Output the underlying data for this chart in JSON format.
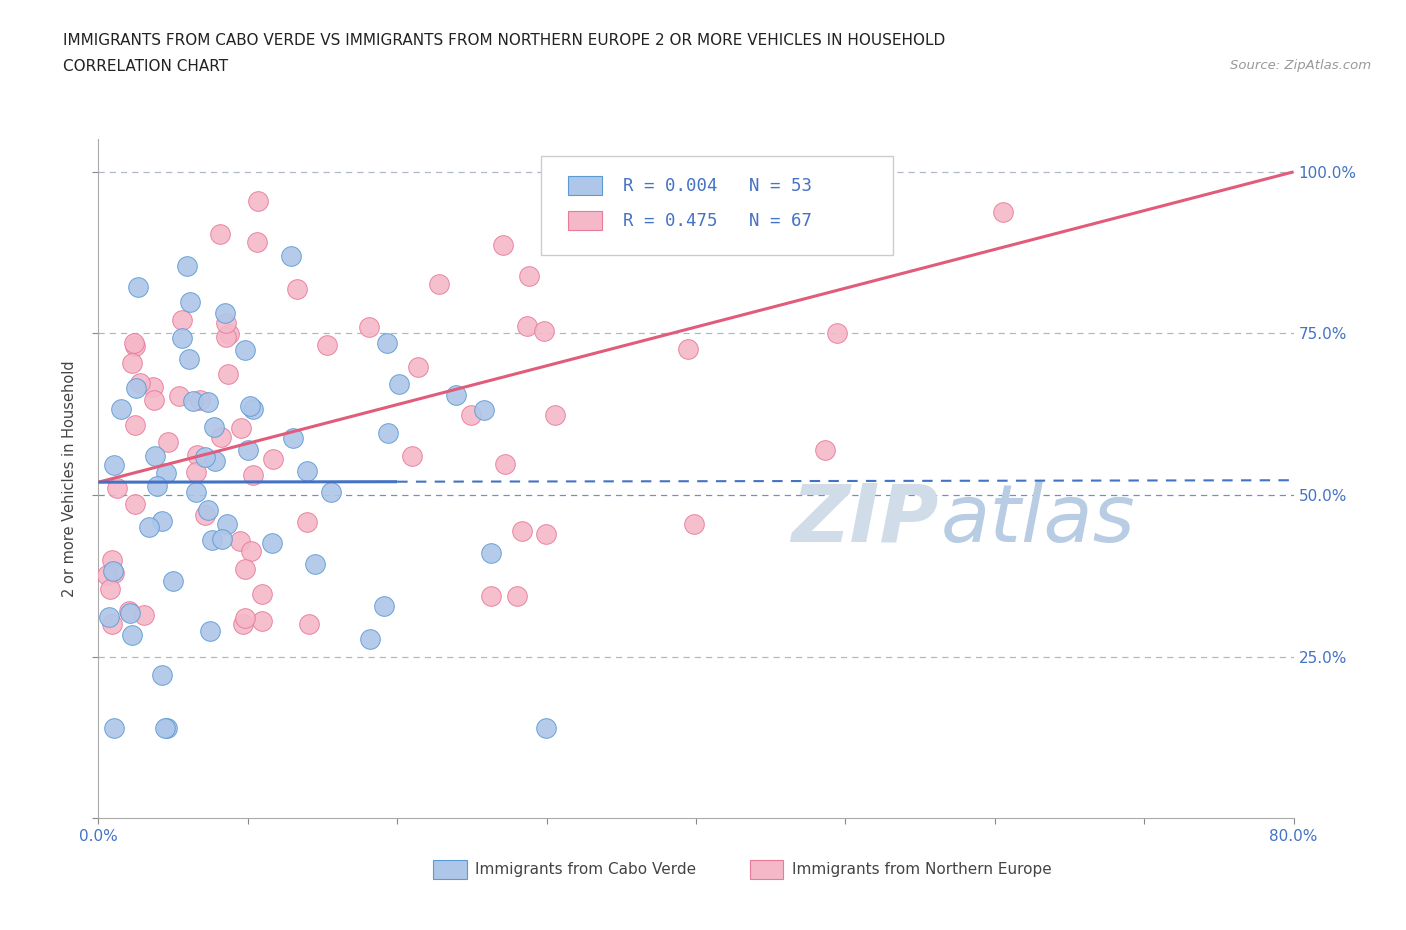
{
  "title_line1": "IMMIGRANTS FROM CABO VERDE VS IMMIGRANTS FROM NORTHERN EUROPE 2 OR MORE VEHICLES IN HOUSEHOLD",
  "title_line2": "CORRELATION CHART",
  "source_text": "Source: ZipAtlas.com",
  "ylabel": "2 or more Vehicles in Household",
  "xlim": [
    0,
    80
  ],
  "ylim": [
    0,
    105
  ],
  "R_cabo": 0.004,
  "N_cabo": 53,
  "R_north": 0.475,
  "N_north": 67,
  "cabo_color": "#aec6e8",
  "cabo_edge_color": "#5b9bd5",
  "north_color": "#f4b8c8",
  "north_edge_color": "#e87a9a",
  "cabo_line_color": "#4472c4",
  "north_line_color": "#e05c7a",
  "grid_dashed_color": "#b0b8c8",
  "blue_dashed_color": "#7090c8",
  "watermark_color": "#d0dce8",
  "right_tick_color": "#4472c4",
  "bottom_tick_color": "#4472c4",
  "cabo_trendline_y0": 52,
  "cabo_trendline_y1": 52.3,
  "north_trendline_y0": 52,
  "north_trendline_y1": 100
}
